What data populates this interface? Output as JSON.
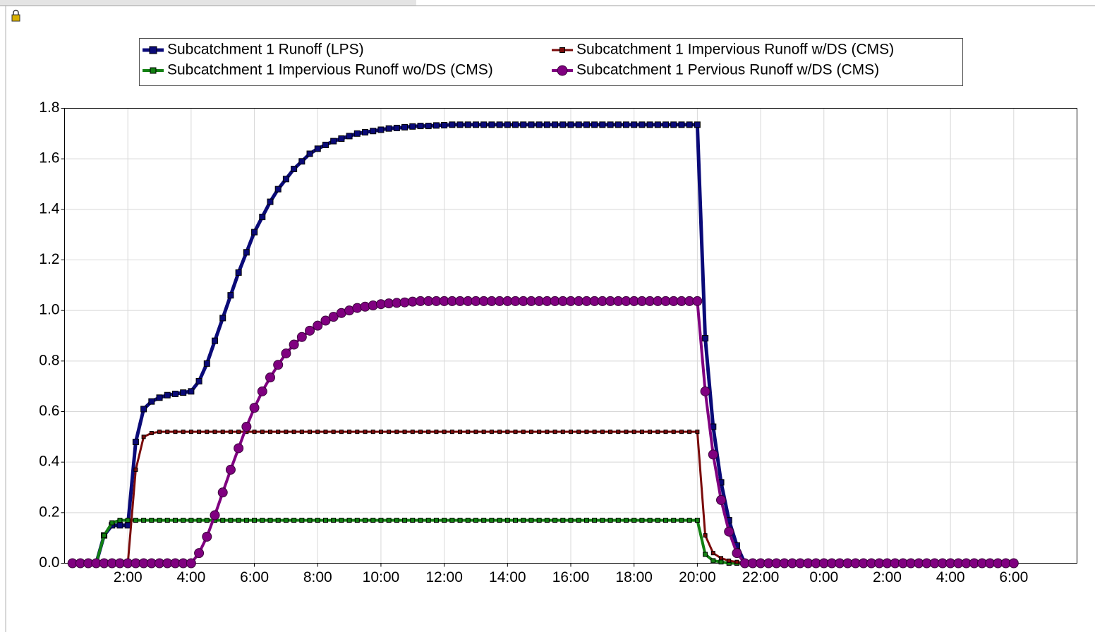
{
  "chart_data": {
    "type": "line",
    "grid": true,
    "legend": "top",
    "xlim": [
      0,
      32
    ],
    "ylim": [
      0,
      1.8
    ],
    "xticks": [
      {
        "value": 2,
        "label": "2:00"
      },
      {
        "value": 4,
        "label": "4:00"
      },
      {
        "value": 6,
        "label": "6:00"
      },
      {
        "value": 8,
        "label": "8:00"
      },
      {
        "value": 10,
        "label": "10:00"
      },
      {
        "value": 12,
        "label": "12:00"
      },
      {
        "value": 14,
        "label": "14:00"
      },
      {
        "value": 16,
        "label": "16:00"
      },
      {
        "value": 18,
        "label": "18:00"
      },
      {
        "value": 20,
        "label": "20:00"
      },
      {
        "value": 22,
        "label": "22:00"
      },
      {
        "value": 24,
        "label": "0:00"
      },
      {
        "value": 26,
        "label": "2:00"
      },
      {
        "value": 28,
        "label": "4:00"
      },
      {
        "value": 30,
        "label": "6:00"
      }
    ],
    "yticks": [
      {
        "value": 0,
        "label": "0.0"
      },
      0.2,
      0.4,
      0.6,
      0.8,
      {
        "value": 1,
        "label": "1.0"
      },
      1.2,
      1.4,
      1.6,
      1.8
    ],
    "x": [
      0.25,
      0.5,
      0.75,
      1,
      1.25,
      1.5,
      1.75,
      2,
      2.25,
      2.5,
      2.75,
      3,
      3.25,
      3.5,
      3.75,
      4,
      4.25,
      4.5,
      4.75,
      5,
      5.25,
      5.5,
      5.75,
      6,
      6.25,
      6.5,
      6.75,
      7,
      7.25,
      7.5,
      7.75,
      8,
      8.25,
      8.5,
      8.75,
      9,
      9.25,
      9.5,
      9.75,
      10,
      10.25,
      10.5,
      10.75,
      11,
      11.25,
      11.5,
      11.75,
      12,
      12.25,
      12.5,
      12.75,
      13,
      13.25,
      13.5,
      13.75,
      14,
      14.25,
      14.5,
      14.75,
      15,
      15.25,
      15.5,
      15.75,
      16,
      16.25,
      16.5,
      16.75,
      17,
      17.25,
      17.5,
      17.75,
      18,
      18.25,
      18.5,
      18.75,
      19,
      19.25,
      19.5,
      19.75,
      20,
      20.25,
      20.5,
      20.75,
      21,
      21.25,
      21.5,
      21.75,
      22,
      22.25,
      22.5,
      22.75,
      23,
      23.25,
      23.5,
      23.75,
      24,
      24.25,
      24.5,
      24.75,
      25,
      25.25,
      25.5,
      25.75,
      26,
      26.25,
      26.5,
      26.75,
      27,
      27.25,
      27.5,
      27.75,
      28,
      28.25,
      28.5,
      28.75,
      29,
      29.25,
      29.5,
      29.75,
      30
    ],
    "series": [
      {
        "name": "Subcatchment 1 Runoff (LPS)",
        "color": "#0a0a78",
        "marker": "square",
        "values": [
          0,
          0,
          0,
          0,
          0.11,
          0.15,
          0.15,
          0.15,
          0.48,
          0.61,
          0.64,
          0.655,
          0.665,
          0.67,
          0.675,
          0.68,
          0.72,
          0.79,
          0.88,
          0.97,
          1.06,
          1.15,
          1.23,
          1.31,
          1.37,
          1.43,
          1.48,
          1.52,
          1.56,
          1.59,
          1.62,
          1.64,
          1.655,
          1.67,
          1.68,
          1.69,
          1.7,
          1.705,
          1.71,
          1.715,
          1.72,
          1.722,
          1.725,
          1.728,
          1.73,
          1.73,
          1.732,
          1.733,
          1.735,
          1.735,
          1.735,
          1.735,
          1.735,
          1.735,
          1.735,
          1.735,
          1.735,
          1.735,
          1.735,
          1.735,
          1.735,
          1.735,
          1.735,
          1.735,
          1.735,
          1.735,
          1.735,
          1.735,
          1.735,
          1.735,
          1.735,
          1.735,
          1.735,
          1.735,
          1.735,
          1.735,
          1.735,
          1.735,
          1.735,
          1.735,
          0.89,
          0.54,
          0.32,
          0.17,
          0.07,
          0,
          0,
          0,
          0,
          0,
          0,
          0,
          0,
          0,
          0,
          0,
          0,
          0,
          0,
          0,
          0,
          0,
          0,
          0,
          0,
          0,
          0,
          0,
          0,
          0,
          0,
          0,
          0,
          0,
          0,
          0,
          0,
          0,
          0,
          0
        ]
      },
      {
        "name": "Subcatchment 1 Impervious Runoff wo/DS (CMS)",
        "color": "#128012",
        "marker": "square",
        "values": [
          0,
          0,
          0,
          0,
          0.11,
          0.16,
          0.17,
          0.17,
          0.17,
          0.17,
          0.17,
          0.17,
          0.17,
          0.17,
          0.17,
          0.17,
          0.17,
          0.17,
          0.17,
          0.17,
          0.17,
          0.17,
          0.17,
          0.17,
          0.17,
          0.17,
          0.17,
          0.17,
          0.17,
          0.17,
          0.17,
          0.17,
          0.17,
          0.17,
          0.17,
          0.17,
          0.17,
          0.17,
          0.17,
          0.17,
          0.17,
          0.17,
          0.17,
          0.17,
          0.17,
          0.17,
          0.17,
          0.17,
          0.17,
          0.17,
          0.17,
          0.17,
          0.17,
          0.17,
          0.17,
          0.17,
          0.17,
          0.17,
          0.17,
          0.17,
          0.17,
          0.17,
          0.17,
          0.17,
          0.17,
          0.17,
          0.17,
          0.17,
          0.17,
          0.17,
          0.17,
          0.17,
          0.17,
          0.17,
          0.17,
          0.17,
          0.17,
          0.17,
          0.17,
          0.17,
          0.035,
          0.01,
          0.005,
          0,
          0,
          0,
          0,
          0,
          0,
          0,
          0,
          0,
          0,
          0,
          0,
          0,
          0,
          0,
          0,
          0,
          0,
          0,
          0,
          0,
          0,
          0,
          0,
          0,
          0,
          0,
          0,
          0,
          0,
          0,
          0,
          0,
          0,
          0,
          0,
          0
        ]
      },
      {
        "name": "Subcatchment 1 Impervious Runoff w/DS (CMS)",
        "color": "#7a0a0a",
        "marker": "square",
        "values": [
          0,
          0,
          0,
          0,
          0,
          0,
          0,
          0,
          0.37,
          0.5,
          0.515,
          0.52,
          0.52,
          0.52,
          0.52,
          0.52,
          0.52,
          0.52,
          0.52,
          0.52,
          0.52,
          0.52,
          0.52,
          0.52,
          0.52,
          0.52,
          0.52,
          0.52,
          0.52,
          0.52,
          0.52,
          0.52,
          0.52,
          0.52,
          0.52,
          0.52,
          0.52,
          0.52,
          0.52,
          0.52,
          0.52,
          0.52,
          0.52,
          0.52,
          0.52,
          0.52,
          0.52,
          0.52,
          0.52,
          0.52,
          0.52,
          0.52,
          0.52,
          0.52,
          0.52,
          0.52,
          0.52,
          0.52,
          0.52,
          0.52,
          0.52,
          0.52,
          0.52,
          0.52,
          0.52,
          0.52,
          0.52,
          0.52,
          0.52,
          0.52,
          0.52,
          0.52,
          0.52,
          0.52,
          0.52,
          0.52,
          0.52,
          0.52,
          0.52,
          0.52,
          0.11,
          0.04,
          0.02,
          0.01,
          0.005,
          0,
          0,
          0,
          0,
          0,
          0,
          0,
          0,
          0,
          0,
          0,
          0,
          0,
          0,
          0,
          0,
          0,
          0,
          0,
          0,
          0,
          0,
          0,
          0,
          0,
          0,
          0,
          0,
          0,
          0,
          0,
          0,
          0,
          0,
          0
        ]
      },
      {
        "name": "Subcatchment 1 Pervious Runoff w/DS (CMS)",
        "color": "#800080",
        "marker": "circle",
        "values": [
          0,
          0,
          0,
          0,
          0,
          0,
          0,
          0,
          0,
          0,
          0,
          0,
          0,
          0,
          0,
          0,
          0.04,
          0.105,
          0.19,
          0.28,
          0.37,
          0.455,
          0.54,
          0.615,
          0.68,
          0.735,
          0.785,
          0.83,
          0.865,
          0.895,
          0.92,
          0.94,
          0.96,
          0.975,
          0.99,
          1,
          1.01,
          1.015,
          1.02,
          1.025,
          1.028,
          1.03,
          1.032,
          1.035,
          1.037,
          1.037,
          1.037,
          1.037,
          1.037,
          1.037,
          1.037,
          1.037,
          1.037,
          1.037,
          1.037,
          1.037,
          1.037,
          1.037,
          1.037,
          1.037,
          1.037,
          1.037,
          1.037,
          1.037,
          1.037,
          1.037,
          1.037,
          1.037,
          1.037,
          1.037,
          1.037,
          1.037,
          1.037,
          1.037,
          1.037,
          1.037,
          1.037,
          1.037,
          1.037,
          1.037,
          0.68,
          0.43,
          0.25,
          0.125,
          0.04,
          0,
          0,
          0,
          0,
          0,
          0,
          0,
          0,
          0,
          0,
          0,
          0,
          0,
          0,
          0,
          0,
          0,
          0,
          0,
          0,
          0,
          0,
          0,
          0,
          0,
          0,
          0,
          0,
          0,
          0,
          0,
          0,
          0,
          0,
          0
        ]
      }
    ]
  }
}
